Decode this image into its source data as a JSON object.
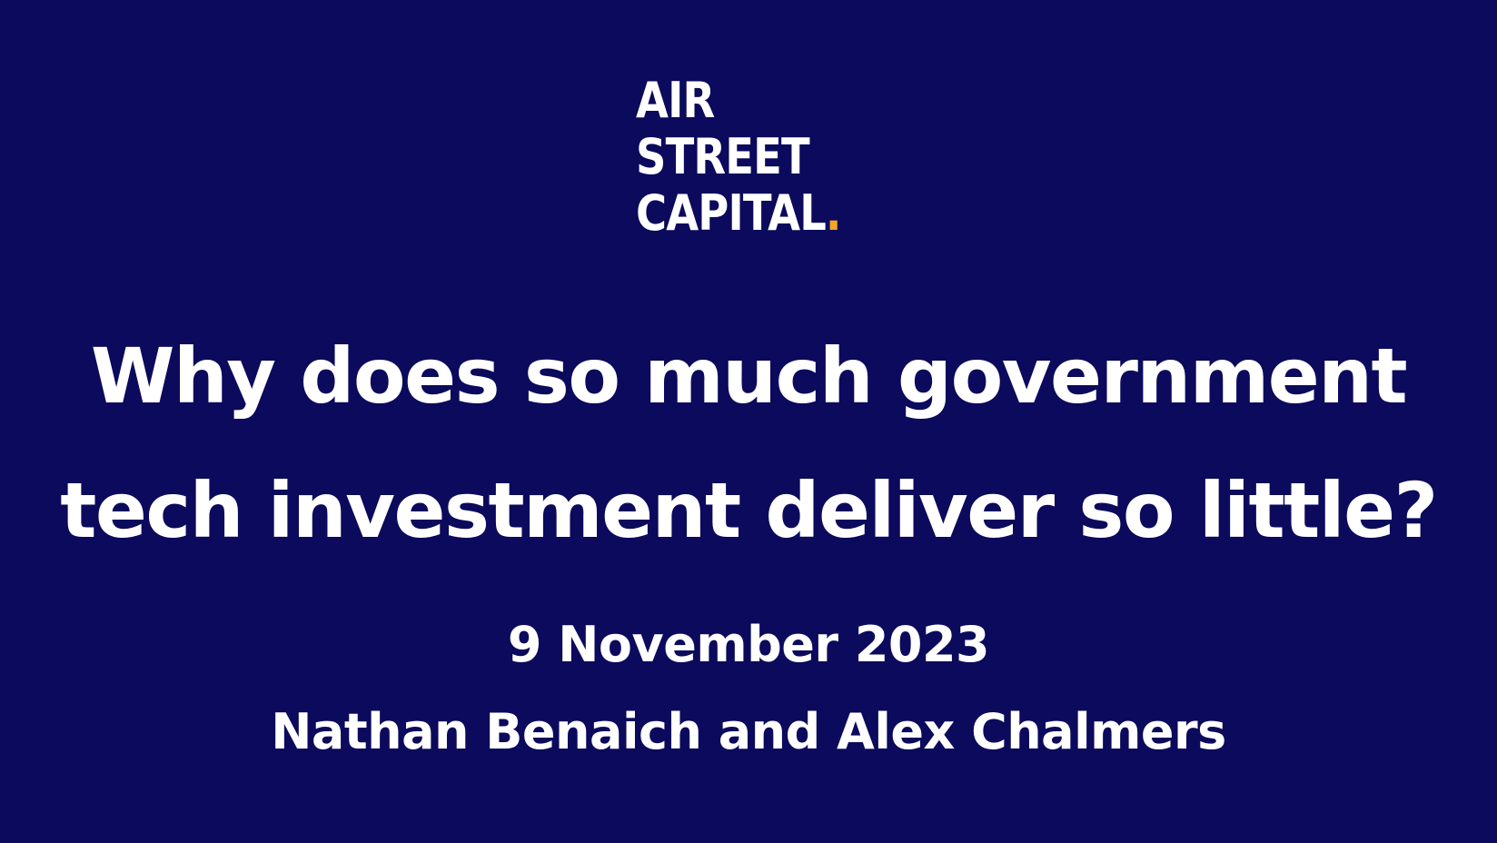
{
  "slide": {
    "background_color": "#0b0a5c",
    "text_color": "#ffffff",
    "logo": {
      "line1": "AIR",
      "line2": "STREET",
      "line3": "CAPITAL",
      "dot": ".",
      "dot_color": "#f5a623"
    },
    "headline": {
      "line1": "Why does so much government",
      "line2": "tech investment deliver so little?"
    },
    "date": "9 November 2023",
    "authors": "Nathan Benaich and Alex Chalmers"
  }
}
